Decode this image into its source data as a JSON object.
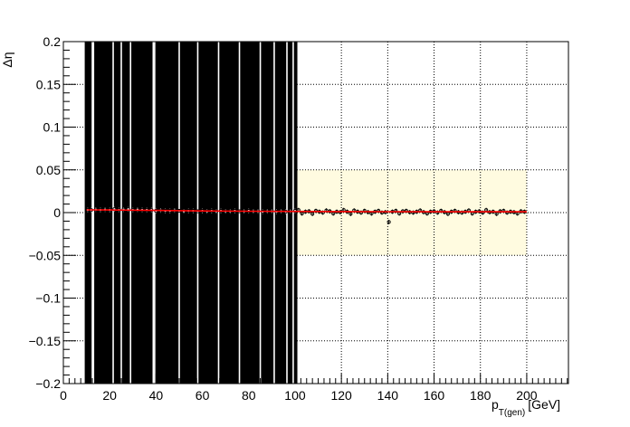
{
  "chart_data": {
    "type": "scatter",
    "xlabel": {
      "main": "p",
      "sub": "T(gen)",
      "unit": "[GeV]"
    },
    "ylabel": "Δη",
    "xlim": [
      0,
      218
    ],
    "ylim": [
      -0.2,
      0.2
    ],
    "x_ticks": [
      0,
      20,
      40,
      60,
      80,
      100,
      120,
      140,
      160,
      180,
      200
    ],
    "y_ticks": [
      -0.2,
      -0.15,
      -0.1,
      -0.05,
      0,
      0.05,
      0.1,
      0.15,
      0.2
    ],
    "x_tick_labels": [
      "0",
      "20",
      "40",
      "60",
      "80",
      "100",
      "120",
      "140",
      "160",
      "180",
      "200"
    ],
    "y_tick_labels": [
      "−0.2",
      "−0.15",
      "−0.1",
      "−0.05",
      "0",
      "0.05",
      "0.1",
      "0.15",
      "0.2"
    ],
    "grid": true,
    "band": {
      "x": [
        10,
        200
      ],
      "y": [
        -0.05,
        0.05
      ],
      "color": "#fffbe0"
    },
    "band_hatched": {
      "x": [
        10,
        100
      ],
      "y": [
        -0.05,
        0.05
      ]
    },
    "error_region": {
      "x": [
        10,
        101
      ],
      "y": [
        -0.2,
        0.2
      ],
      "color": "#000000"
    },
    "white_gaps_x": [
      12.5,
      13.0,
      21.5,
      25.0,
      29.0,
      38.8,
      39.4,
      50.0,
      58.0,
      67.0,
      76.0,
      85.0,
      91.0,
      96.5,
      99.2
    ],
    "series": [
      {
        "style": "points",
        "x": [
          10.5,
          12,
          14,
          16,
          18,
          20,
          22,
          24,
          26,
          28,
          30,
          32,
          34,
          36,
          38,
          40,
          42,
          44,
          46,
          48,
          50,
          52,
          54,
          56,
          58,
          60,
          62,
          64,
          66,
          68,
          70,
          72,
          74,
          76,
          78,
          80,
          82,
          84,
          86,
          88,
          90,
          92,
          94,
          96,
          98,
          100,
          101.5,
          103,
          104.5,
          106,
          107.5,
          109,
          110.5,
          112,
          113.5,
          115,
          116.5,
          118,
          119.5,
          121,
          122.5,
          124,
          125.5,
          127,
          128.5,
          130,
          131.5,
          133,
          134.5,
          136,
          137.5,
          139,
          140.5,
          142,
          143.5,
          145,
          146.5,
          148,
          149.5,
          151,
          152.5,
          154,
          155.5,
          157,
          158.5,
          160,
          161.5,
          163,
          164.5,
          166,
          167.5,
          169,
          170.5,
          172,
          173.5,
          175,
          176.5,
          178,
          179.5,
          181,
          182.5,
          184,
          185.5,
          187,
          188.5,
          190,
          191.5,
          193,
          194.5,
          196,
          197.5,
          199
        ],
        "y": [
          0.003,
          0.003,
          0.0035,
          0.003,
          0.0035,
          0.003,
          0.004,
          0.003,
          0.0035,
          0.004,
          0.003,
          0.0035,
          0.003,
          0.003,
          0.003,
          0.002,
          0.0025,
          0.002,
          0.002,
          0.0025,
          0.002,
          0.0015,
          0.002,
          0.002,
          0.0015,
          0.002,
          0.0015,
          0.002,
          0.0015,
          0.002,
          0.0015,
          0.0015,
          0.002,
          0.0015,
          0.0015,
          0.002,
          0.0015,
          0.0015,
          0.001,
          0.0015,
          0.0015,
          0.001,
          0.0015,
          0.001,
          0.0015,
          0.002,
          0.003,
          -0.001,
          0.001,
          0.0015,
          -0.0015,
          0.002,
          0.001,
          0.0,
          0.0025,
          0.0015,
          -0.001,
          0.001,
          0.0005,
          0.003,
          0.001,
          -0.0015,
          0.0025,
          0.001,
          0.0,
          0.002,
          0.0005,
          -0.001,
          0.001,
          0.002,
          0.0,
          0.0005,
          -0.011,
          0.001,
          0.002,
          -0.001,
          0.0015,
          0.002,
          0.0005,
          0.0,
          0.001,
          0.0025,
          0.0005,
          -0.001,
          0.001,
          0.0015,
          0.0,
          0.002,
          0.0005,
          -0.0015,
          0.001,
          0.002,
          0.0005,
          0.0,
          0.001,
          0.0025,
          -0.001,
          0.001,
          0.0015,
          0.0,
          0.003,
          0.0005,
          0.001,
          -0.0015,
          0.0015,
          0.002,
          0.0,
          0.001,
          0.0005,
          -0.001,
          0.0015,
          0.001
        ]
      },
      {
        "style": "fit-line",
        "color": "#ff0000",
        "x": [
          10,
          20,
          40,
          60,
          80,
          100,
          120,
          140,
          160,
          180,
          200
        ],
        "y": [
          0.0032,
          0.0031,
          0.0025,
          0.0019,
          0.0016,
          0.0014,
          0.0012,
          0.0011,
          0.001,
          0.001,
          0.0009
        ]
      }
    ]
  }
}
